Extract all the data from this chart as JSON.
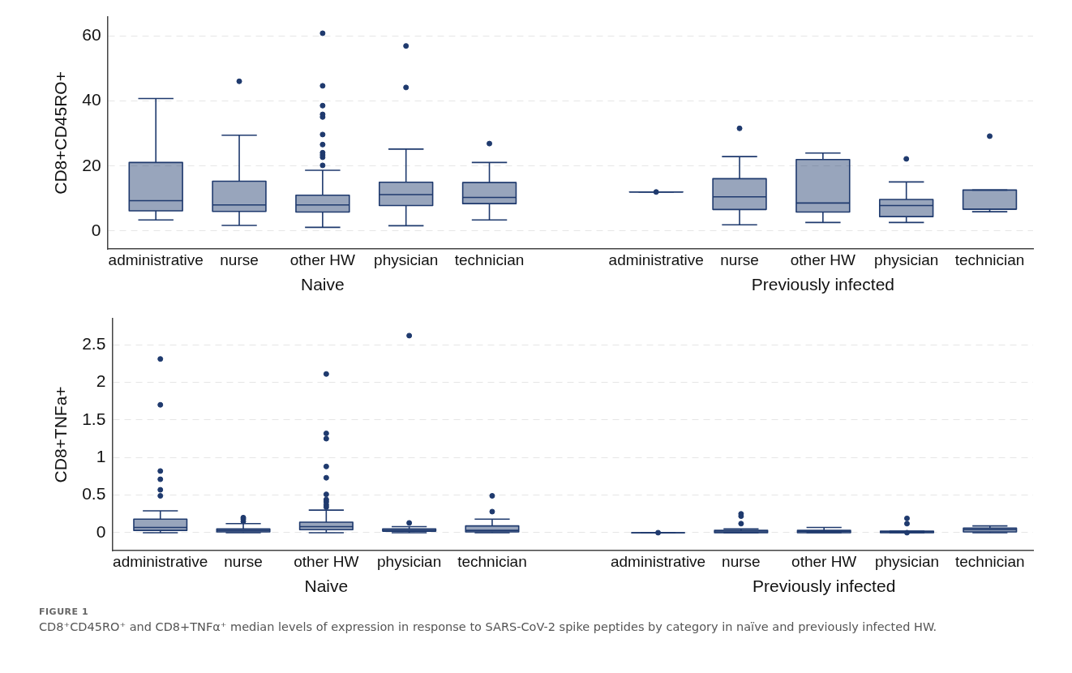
{
  "chart_data": [
    {
      "type": "box",
      "ylabel": "CD8+CD45RO+",
      "color": "#1f3a6e",
      "grid": "y",
      "categories": [
        "administrative",
        "nurse",
        "other HW",
        "physician",
        "technician",
        null,
        "administrative",
        "nurse",
        "other HW",
        "physician",
        "technician"
      ],
      "ylim": [
        -5.6,
        66
      ],
      "yticks": [
        0,
        20,
        40,
        60
      ],
      "boxes": [
        {
          "low": 3.4,
          "q1": 6.2,
          "median": 9.3,
          "q3": 21.1,
          "high": 40.8
        },
        {
          "low": 1.7,
          "q1": 6.0,
          "median": 8.0,
          "q3": 15.3,
          "high": 29.5,
          "outliers": [
            46.1
          ]
        },
        {
          "low": 1.1,
          "q1": 5.8,
          "median": 8.0,
          "q3": 11.0,
          "high": 18.7,
          "outliers": [
            60.9,
            44.7,
            38.6,
            35.9,
            35.1,
            29.7,
            26.6,
            24.1,
            23.4,
            22.7,
            20.2
          ]
        },
        {
          "low": 1.6,
          "q1": 7.8,
          "median": 11.2,
          "q3": 15.0,
          "high": 25.2,
          "outliers": [
            57.0,
            44.2
          ]
        },
        {
          "low": 3.4,
          "q1": 8.4,
          "median": 10.3,
          "q3": 14.9,
          "high": 21.1,
          "outliers": [
            26.9
          ]
        },
        null,
        {
          "low": 12.0,
          "q1": 12.0,
          "median": 12.0,
          "q3": 12.0,
          "high": 12.0,
          "outliers": [
            12.0
          ]
        },
        {
          "low": 1.9,
          "q1": 6.6,
          "median": 10.5,
          "q3": 16.1,
          "high": 22.9,
          "outliers": [
            31.6
          ]
        },
        {
          "low": 2.6,
          "q1": 5.8,
          "median": 8.6,
          "q3": 22.0,
          "high": 24.0
        },
        {
          "low": 2.6,
          "q1": 4.4,
          "median": 7.8,
          "q3": 9.7,
          "high": 15.1,
          "outliers": [
            22.2
          ]
        },
        {
          "low": 5.9,
          "q1": 6.7,
          "median": 6.7,
          "q3": 12.6,
          "high": 12.6,
          "outliers": [
            29.2
          ]
        }
      ],
      "annotations": [
        "Naive",
        "Previously infected"
      ]
    },
    {
      "type": "box",
      "ylabel": "CD8+TNFa+",
      "color": "#1f3a6e",
      "grid": "y",
      "categories": [
        "administrative",
        "nurse",
        "other HW",
        "physician",
        "technician",
        null,
        "administrative",
        "nurse",
        "other HW",
        "physician",
        "technician"
      ],
      "ylim": [
        -0.24,
        2.85
      ],
      "yticks": [
        0,
        0.5,
        1,
        1.5,
        2,
        2.5
      ],
      "boxes": [
        {
          "low": 0,
          "q1": 0.03,
          "median": 0.07,
          "q3": 0.18,
          "high": 0.29,
          "outliers": [
            2.31,
            1.7,
            0.82,
            0.71,
            0.57,
            0.49
          ]
        },
        {
          "low": 0,
          "q1": 0.01,
          "median": 0.03,
          "q3": 0.05,
          "high": 0.12,
          "outliers": [
            0.2,
            0.18,
            0.15
          ]
        },
        {
          "low": 0,
          "q1": 0.04,
          "median": 0.08,
          "q3": 0.14,
          "high": 0.3,
          "outliers": [
            2.11,
            1.32,
            1.25,
            0.88,
            0.73,
            0.51,
            0.44,
            0.41,
            0.37,
            0.34
          ]
        },
        {
          "low": 0,
          "q1": 0.02,
          "median": 0.03,
          "q3": 0.05,
          "high": 0.08,
          "outliers": [
            2.62,
            0.13
          ]
        },
        {
          "low": 0,
          "q1": 0.01,
          "median": 0.03,
          "q3": 0.09,
          "high": 0.18,
          "outliers": [
            0.49,
            0.28
          ]
        },
        null,
        {
          "low": 0,
          "q1": 0,
          "median": 0,
          "q3": 0,
          "high": 0,
          "outliers": [
            0
          ]
        },
        {
          "low": 0,
          "q1": 0,
          "median": 0.01,
          "q3": 0.03,
          "high": 0.05,
          "outliers": [
            0.25,
            0.22,
            0.12
          ]
        },
        {
          "low": 0,
          "q1": 0,
          "median": 0.02,
          "q3": 0.03,
          "high": 0.07
        },
        {
          "low": 0,
          "q1": 0,
          "median": 0.01,
          "q3": 0.02,
          "high": 0.02,
          "outliers": [
            0.19,
            0.12,
            0
          ]
        },
        {
          "low": 0,
          "q1": 0.01,
          "median": 0.04,
          "q3": 0.06,
          "high": 0.09
        }
      ],
      "annotations": [
        "Naive",
        "Previously infected",
        "FIGURE 1",
        "CD8⁺CD45RO⁺ and CD8+TNFα⁺ median levels of expression in response to SARS-CoV-2 spike peptides by category in naïve and previously infected HW."
      ]
    }
  ]
}
